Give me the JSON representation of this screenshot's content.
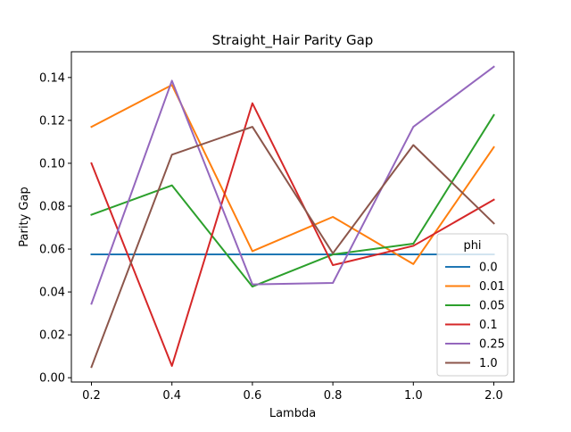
{
  "chart_data": {
    "type": "line",
    "title": "Straight_Hair Parity Gap",
    "xlabel": "Lambda",
    "ylabel": "Parity Gap",
    "categories": [
      "0.2",
      "0.4",
      "0.6",
      "0.8",
      "1.0",
      "2.0"
    ],
    "y_ticks": [
      "0.00",
      "0.02",
      "0.04",
      "0.06",
      "0.08",
      "0.10",
      "0.12",
      "0.14"
    ],
    "ylim": [
      -0.002,
      0.152
    ],
    "grid": false,
    "legend": {
      "title": "phi",
      "placement": "lower right"
    },
    "series": [
      {
        "name": "0.0",
        "color": "#1f77b4",
        "values": [
          0.0575,
          0.0575,
          0.0575,
          0.0575,
          0.0575,
          0.0575
        ]
      },
      {
        "name": "0.01",
        "color": "#ff7f0e",
        "values": [
          0.117,
          0.1365,
          0.059,
          0.075,
          0.053,
          0.1075
        ]
      },
      {
        "name": "0.05",
        "color": "#2ca02c",
        "values": [
          0.076,
          0.0897,
          0.0425,
          0.0575,
          0.0625,
          0.1225
        ]
      },
      {
        "name": "0.1",
        "color": "#d62728",
        "values": [
          0.1,
          0.0055,
          0.128,
          0.0525,
          0.0615,
          0.083
        ]
      },
      {
        "name": "0.25",
        "color": "#9467bd",
        "values": [
          0.0345,
          0.1385,
          0.0435,
          0.0442,
          0.117,
          0.145
        ]
      },
      {
        "name": "1.0",
        "color": "#8c564b",
        "values": [
          0.005,
          0.104,
          0.117,
          0.058,
          0.1085,
          0.072
        ]
      }
    ]
  }
}
